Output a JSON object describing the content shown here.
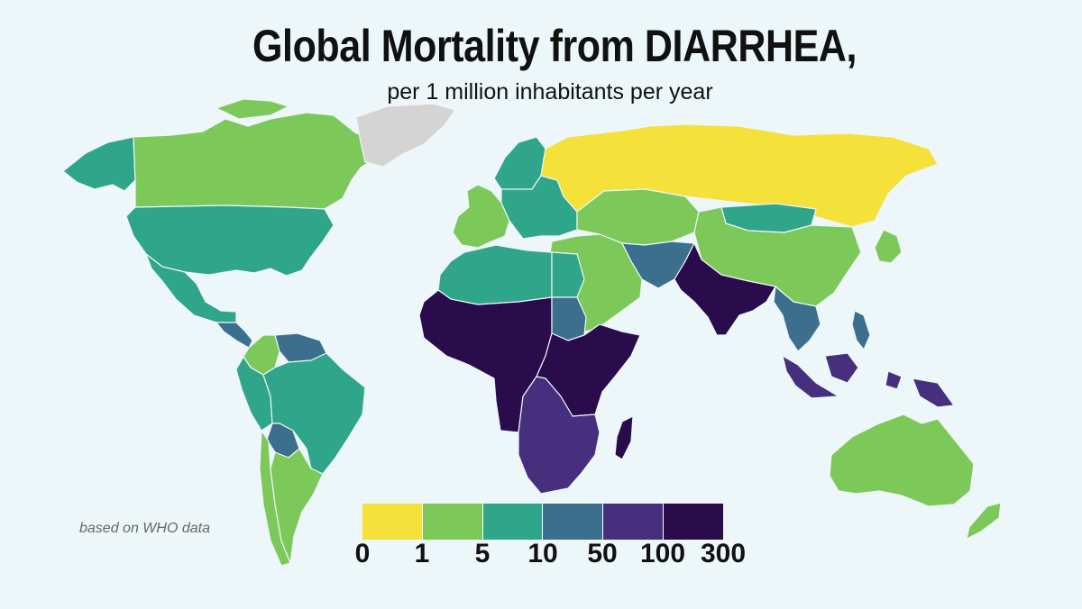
{
  "title": "Global Mortality from DIARRHEA,",
  "subtitle": "per 1 million inhabitants per year",
  "credit": "based on WHO data",
  "legend": {
    "colors": [
      "#f4e23a",
      "#7cc95a",
      "#2fa58a",
      "#3b6f8d",
      "#46307e",
      "#2a0b4c"
    ],
    "ticks": [
      "0",
      "1",
      "5",
      "10",
      "50",
      "100",
      "300"
    ]
  },
  "no_data_color": "#d4d4d4",
  "regions": [
    {
      "name": "Canada",
      "bin": 1
    },
    {
      "name": "Alaska",
      "bin": 2
    },
    {
      "name": "Greenland",
      "bin": "no-data"
    },
    {
      "name": "United States",
      "bin": 2
    },
    {
      "name": "Mexico",
      "bin": 2
    },
    {
      "name": "Central America",
      "bin": 3
    },
    {
      "name": "Colombia",
      "bin": 1
    },
    {
      "name": "Venezuela",
      "bin": 3
    },
    {
      "name": "Brazil",
      "bin": 2
    },
    {
      "name": "Peru",
      "bin": 2
    },
    {
      "name": "Bolivia",
      "bin": 3
    },
    {
      "name": "Chile",
      "bin": 1
    },
    {
      "name": "Argentina",
      "bin": 1
    },
    {
      "name": "Russia",
      "bin": 0
    },
    {
      "name": "Northern Europe",
      "bin": 2
    },
    {
      "name": "Western Europe",
      "bin": 1
    },
    {
      "name": "Eastern Europe",
      "bin": 2
    },
    {
      "name": "Kazakhstan",
      "bin": 1
    },
    {
      "name": "Mongolia",
      "bin": 2
    },
    {
      "name": "China",
      "bin": 1
    },
    {
      "name": "Japan",
      "bin": 1
    },
    {
      "name": "Middle East",
      "bin": 1
    },
    {
      "name": "Iran and Afghanistan",
      "bin": 3
    },
    {
      "name": "India",
      "bin": 5
    },
    {
      "name": "Southeast Asia",
      "bin": 3
    },
    {
      "name": "Indonesia",
      "bin": 4
    },
    {
      "name": "Papua New Guinea",
      "bin": 4
    },
    {
      "name": "Philippines",
      "bin": 3
    },
    {
      "name": "Australia",
      "bin": 1
    },
    {
      "name": "New Zealand",
      "bin": 1
    },
    {
      "name": "North Africa",
      "bin": 2
    },
    {
      "name": "Egypt",
      "bin": 2
    },
    {
      "name": "West and Central Africa",
      "bin": 5
    },
    {
      "name": "Sudan",
      "bin": 3
    },
    {
      "name": "East Africa",
      "bin": 5
    },
    {
      "name": "Southern Africa",
      "bin": 4
    },
    {
      "name": "Madagascar",
      "bin": 5
    }
  ]
}
